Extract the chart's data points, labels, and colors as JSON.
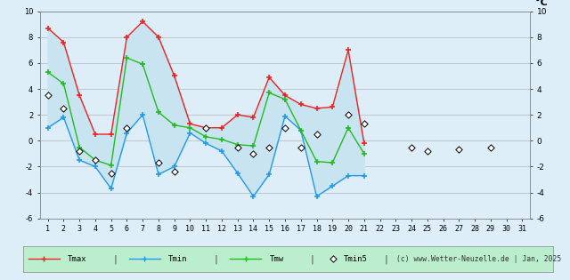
{
  "days_data": [
    1,
    2,
    3,
    4,
    5,
    6,
    7,
    8,
    9,
    10,
    11,
    12,
    13,
    14,
    15,
    16,
    17,
    18,
    19,
    20,
    21
  ],
  "tmax": [
    8.7,
    7.6,
    3.5,
    0.5,
    0.5,
    8.0,
    9.2,
    8.0,
    5.0,
    1.3,
    1.0,
    1.0,
    2.0,
    1.8,
    4.9,
    3.5,
    2.8,
    2.5,
    2.6,
    7.0,
    -0.2
  ],
  "tmin": [
    1.0,
    1.8,
    -1.5,
    -2.0,
    -3.7,
    0.6,
    2.0,
    -2.6,
    -2.0,
    0.6,
    -0.2,
    -0.8,
    -2.5,
    -4.3,
    -2.6,
    1.9,
    0.8,
    -4.3,
    -3.5,
    -2.7,
    -2.7
  ],
  "tmw": [
    5.3,
    4.4,
    -0.5,
    -1.5,
    -1.9,
    6.4,
    5.9,
    2.2,
    1.2,
    1.0,
    0.3,
    0.1,
    -0.3,
    -0.4,
    3.7,
    3.2,
    0.8,
    -1.6,
    -1.7,
    1.0,
    -1.0
  ],
  "tmin5_days": [
    1,
    2,
    3,
    4,
    5,
    6,
    8,
    9,
    11,
    13,
    14,
    15,
    16,
    17,
    18,
    20,
    21,
    24,
    25,
    27,
    29
  ],
  "tmin5": [
    3.5,
    2.5,
    -0.8,
    -1.5,
    -2.5,
    1.0,
    -1.7,
    -2.4,
    1.0,
    -0.5,
    -1.0,
    -0.5,
    1.0,
    -0.5,
    0.5,
    2.0,
    1.3,
    -0.5,
    -0.8,
    -0.7,
    -0.5
  ],
  "all_days": [
    1,
    2,
    3,
    4,
    5,
    6,
    7,
    8,
    9,
    10,
    11,
    12,
    13,
    14,
    15,
    16,
    17,
    18,
    19,
    20,
    21,
    22,
    23,
    24,
    25,
    26,
    27,
    28,
    29,
    30,
    31
  ],
  "ylim": [
    -6,
    10
  ],
  "yticks": [
    -6,
    -4,
    -2,
    0,
    2,
    4,
    6,
    8,
    10
  ],
  "bg_color": "#ddeef8",
  "fill_color": "#c8e4f0",
  "tmax_color": "#ee2222",
  "tmin_color": "#2299ee",
  "tmw_color": "#22bb22",
  "tmin5_color": "#000000",
  "legend_bg": "#bbeecc",
  "footer": "(c) www.Wetter-Neuzelle.de | Jan, 2025",
  "deg_c_label": "°C"
}
